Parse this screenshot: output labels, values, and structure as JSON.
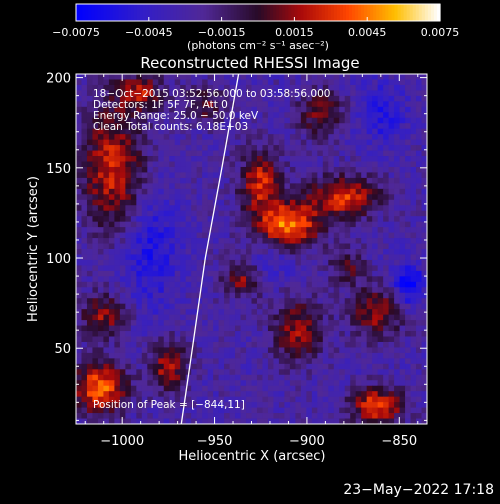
{
  "chart_data": {
    "type": "heatmap",
    "title": "Reconstructed RHESSI Image",
    "xlabel": "Heliocentric X (arcsec)",
    "ylabel": "Heliocentric Y (arcsec)",
    "xlim": [
      -1025,
      -835
    ],
    "ylim": [
      8,
      202
    ],
    "x_ticks": [
      -1000,
      -950,
      -900,
      -850
    ],
    "x_tick_labels": [
      "−1000",
      "−950",
      "−900",
      "−850"
    ],
    "y_ticks": [
      50,
      100,
      150,
      200
    ],
    "y_tick_labels": [
      "50",
      "100",
      "150",
      "200"
    ],
    "colorbar": {
      "range": [
        -0.0075,
        0.0075
      ],
      "ticks": [
        -0.0075,
        -0.0045,
        -0.0015,
        0.0015,
        0.0045,
        0.0075
      ],
      "tick_labels": [
        "−0.0075",
        "−0.0045",
        "−0.0015",
        "0.0015",
        "0.0045",
        "0.0075"
      ],
      "units": "(photons cm⁻² s⁻¹ asec⁻²)"
    },
    "annotations": [
      "18−Oct−2015 03:52:56.000 to 03:58:56.000",
      "Detectors: 1F 5F 7F, Att 0",
      "Energy Range: 25.0 − 50.0 keV",
      "Clean     Total counts: 6.18E+03"
    ],
    "peak_label": "Position of Peak = [−844,11]",
    "peak_position": [
      -844,
      11
    ],
    "limb_arc": [
      [
        -968,
        8
      ],
      [
        -962,
        50
      ],
      [
        -955,
        100
      ],
      [
        -946,
        150
      ],
      [
        -937,
        202
      ]
    ],
    "sources": [
      {
        "x": -910,
        "y": 118,
        "amp": 0.0075,
        "sx": 12,
        "sy": 9
      },
      {
        "x": -880,
        "y": 134,
        "amp": 0.006,
        "sx": 13,
        "sy": 8
      },
      {
        "x": -925,
        "y": 142,
        "amp": 0.0055,
        "sx": 8,
        "sy": 12
      },
      {
        "x": -1012,
        "y": 28,
        "amp": 0.0072,
        "sx": 10,
        "sy": 10
      },
      {
        "x": -862,
        "y": 18,
        "amp": 0.0065,
        "sx": 10,
        "sy": 7
      },
      {
        "x": -975,
        "y": 40,
        "amp": 0.005,
        "sx": 7,
        "sy": 10
      },
      {
        "x": -1005,
        "y": 150,
        "amp": 0.0055,
        "sx": 12,
        "sy": 25
      },
      {
        "x": -990,
        "y": 192,
        "amp": 0.0045,
        "sx": 9,
        "sy": 7
      },
      {
        "x": -1010,
        "y": 68,
        "amp": 0.0045,
        "sx": 9,
        "sy": 8
      },
      {
        "x": -905,
        "y": 60,
        "amp": 0.0045,
        "sx": 10,
        "sy": 12
      },
      {
        "x": -862,
        "y": 70,
        "amp": 0.0045,
        "sx": 10,
        "sy": 10
      },
      {
        "x": -935,
        "y": 88,
        "amp": 0.004,
        "sx": 8,
        "sy": 7
      },
      {
        "x": -892,
        "y": 180,
        "amp": 0.004,
        "sx": 9,
        "sy": 9
      },
      {
        "x": -955,
        "y": 185,
        "amp": 0.0035,
        "sx": 8,
        "sy": 7
      },
      {
        "x": -878,
        "y": 95,
        "amp": 0.003,
        "sx": 7,
        "sy": 7
      },
      {
        "x": -985,
        "y": 105,
        "amp": -0.003,
        "sx": 10,
        "sy": 22
      },
      {
        "x": -845,
        "y": 85,
        "amp": -0.0045,
        "sx": 6,
        "sy": 8
      },
      {
        "x": -860,
        "y": 180,
        "amp": -0.0025,
        "sx": 10,
        "sy": 12
      },
      {
        "x": -918,
        "y": 98,
        "amp": -0.002,
        "sx": 8,
        "sy": 8
      }
    ]
  },
  "footer": {
    "date": "23−May−2022 17:18"
  }
}
